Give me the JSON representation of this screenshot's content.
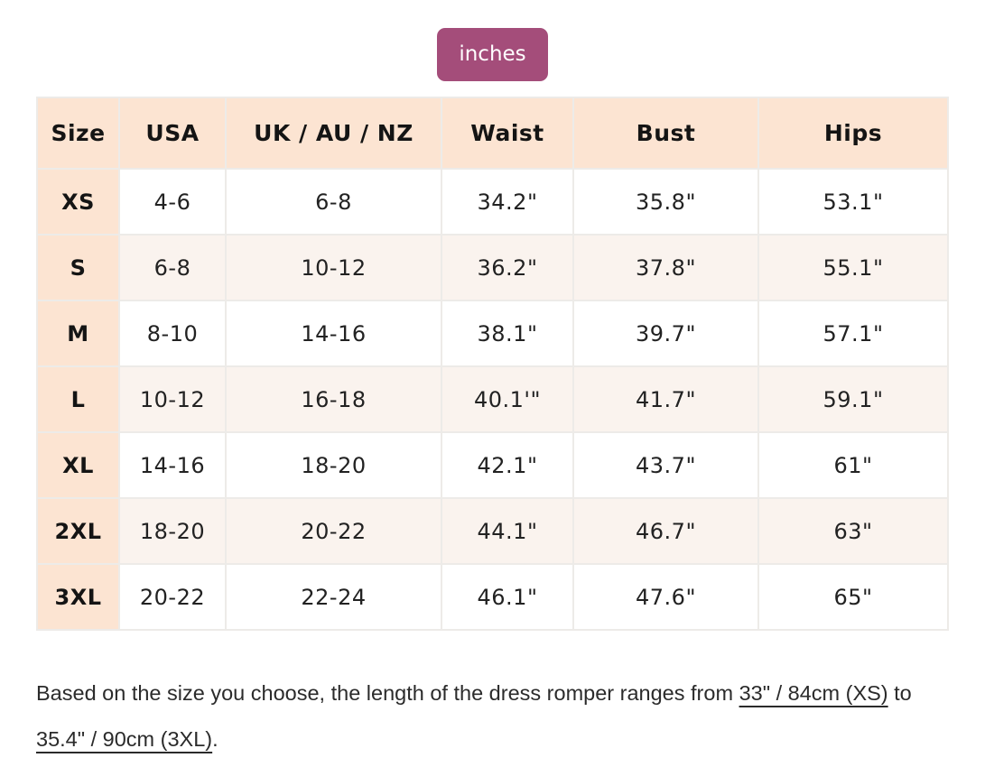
{
  "unit_toggle": {
    "label": "inches"
  },
  "table": {
    "headers": [
      "Size",
      "USA",
      "UK / AU / NZ",
      "Waist",
      "Bust",
      "Hips"
    ],
    "rows": [
      [
        "XS",
        "4-6",
        "6-8",
        "34.2\"",
        "35.8\"",
        "53.1\""
      ],
      [
        "S",
        "6-8",
        "10-12",
        "36.2\"",
        "37.8\"",
        "55.1\""
      ],
      [
        "M",
        "8-10",
        "14-16",
        "38.1\"",
        "39.7\"",
        "57.1\""
      ],
      [
        "L",
        "10-12",
        "16-18",
        "40.1'\"",
        "41.7\"",
        "59.1\""
      ],
      [
        "XL",
        "14-16",
        "18-20",
        "42.1\"",
        "43.7\"",
        "61\""
      ],
      [
        "2XL",
        "18-20",
        "20-22",
        "44.1\"",
        "46.7\"",
        "63\""
      ],
      [
        "3XL",
        "20-22",
        "22-24",
        "46.1\"",
        "47.6\"",
        "65\""
      ]
    ]
  },
  "footer": {
    "text_before": "Based on the size you choose, the length of the dress romper ranges from ",
    "range_xs": "33\" / 84cm (XS)",
    "text_between": " to ",
    "range_3xl": "35.4\" / 90cm (3XL)",
    "text_after": "."
  },
  "colors": {
    "accent_button": "#a44d7a",
    "header_peach": "#fce4d2",
    "alt_row_cream": "#faf3ee",
    "grid_border": "#edebe8"
  }
}
